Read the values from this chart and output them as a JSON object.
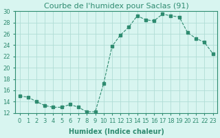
{
  "x": [
    0,
    1,
    2,
    3,
    4,
    5,
    6,
    7,
    8,
    9,
    10,
    11,
    12,
    13,
    14,
    15,
    16,
    17,
    18,
    19,
    20,
    21,
    22,
    23
  ],
  "y": [
    15,
    14.8,
    14,
    13.3,
    13,
    13,
    13.5,
    13,
    12.2,
    12.2,
    17.2,
    23.8,
    25.8,
    27.2,
    29.2,
    28.5,
    28.3,
    29.5,
    29.2,
    29.0,
    26.2,
    25.2,
    24.5,
    22.5
  ],
  "line_color": "#2e8b70",
  "marker": "s",
  "marker_size": 3,
  "line_width": 0.8,
  "linestyle": "--",
  "bg_color": "#d8f5f0",
  "grid_color": "#b0ddd5",
  "title": "Courbe de l'humidex pour Saclas (91)",
  "xlabel": "Humidex (Indice chaleur)",
  "ylabel": "",
  "xlim": [
    -0.5,
    23.5
  ],
  "ylim": [
    12,
    30
  ],
  "yticks": [
    12,
    14,
    16,
    18,
    20,
    22,
    24,
    26,
    28,
    30
  ],
  "xticks": [
    0,
    1,
    2,
    3,
    4,
    5,
    6,
    7,
    8,
    9,
    10,
    11,
    12,
    13,
    14,
    15,
    16,
    17,
    18,
    19,
    20,
    21,
    22,
    23
  ],
  "xtick_labels": [
    "0",
    "1",
    "2",
    "3",
    "4",
    "5",
    "6",
    "7",
    "8",
    "9",
    "10",
    "11",
    "12",
    "13",
    "14",
    "15",
    "16",
    "17",
    "18",
    "19",
    "20",
    "21",
    "22",
    "23"
  ],
  "title_fontsize": 8,
  "axis_fontsize": 7,
  "tick_fontsize": 6
}
